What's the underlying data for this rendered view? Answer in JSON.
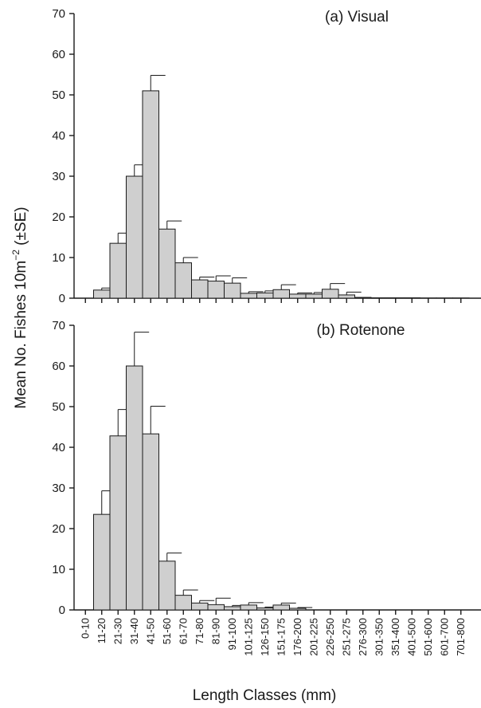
{
  "chart_data": {
    "type": "bar",
    "xlabel": "Length Classes (mm)",
    "ylabel": {
      "prefix": "Mean No. Fishes 10m",
      "superscript": "−2",
      "suffix": " (±SE)"
    },
    "categories": [
      "0-10",
      "11-20",
      "21-30",
      "31-40",
      "41-50",
      "51-60",
      "61-70",
      "71-80",
      "81-90",
      "91-100",
      "101-125",
      "126-150",
      "151-175",
      "176-200",
      "201-225",
      "226-250",
      "251-275",
      "276-300",
      "301-350",
      "351-400",
      "401-500",
      "501-600",
      "601-700",
      "701-800"
    ],
    "panels": [
      {
        "title": "(a) Visual",
        "ylim": [
          0,
          70
        ],
        "yticks": [
          0,
          10,
          20,
          30,
          40,
          50,
          60,
          70
        ],
        "values": [
          0,
          2,
          13.5,
          30,
          51,
          17,
          8.7,
          4.5,
          4.2,
          3.7,
          1.2,
          1.3,
          2.1,
          1.0,
          1.0,
          2.2,
          0.8,
          0.2,
          0.1,
          0.1,
          0.1,
          0.05,
          0.05,
          0.05
        ],
        "se": [
          0,
          0.5,
          2.5,
          2.8,
          3.8,
          2.0,
          1.3,
          0.7,
          1.3,
          1.3,
          0.4,
          0.5,
          1.2,
          0.3,
          0.4,
          1.4,
          0.7,
          0,
          0,
          0,
          0,
          0,
          0,
          0
        ]
      },
      {
        "title": "(b) Rotenone",
        "ylim": [
          0,
          70
        ],
        "yticks": [
          0,
          10,
          20,
          30,
          40,
          50,
          60,
          70
        ],
        "values": [
          0,
          23.5,
          42.8,
          60,
          43.3,
          12,
          3.6,
          1.7,
          1.3,
          0.8,
          1.2,
          0.5,
          1.2,
          0.4,
          0,
          0,
          0,
          0,
          0,
          0,
          0,
          0,
          0,
          0
        ],
        "se": [
          0,
          5.8,
          6.5,
          8.3,
          6.8,
          2.0,
          1.3,
          0.6,
          1.6,
          0.3,
          0.6,
          0.2,
          0.5,
          0.2,
          0,
          0,
          0,
          0,
          0,
          0,
          0,
          0,
          0,
          0
        ]
      }
    ]
  }
}
